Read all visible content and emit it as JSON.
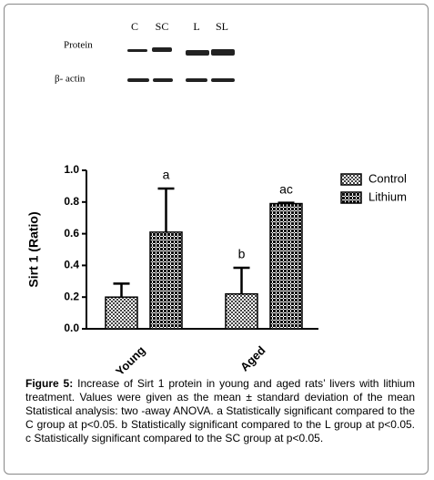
{
  "blot": {
    "lanes": [
      "C",
      "SC",
      "L",
      "SL"
    ],
    "rows": [
      "Protein",
      "β- actin"
    ]
  },
  "chart_data": {
    "type": "bar",
    "ylabel": "Sirt 1 (Ratio)",
    "categories": [
      "Young",
      "Aged"
    ],
    "series": [
      {
        "name": "Control",
        "color": "#444",
        "values": [
          0.2,
          0.22
        ],
        "errors": [
          0.085,
          0.165
        ],
        "annotations": [
          null,
          "b"
        ]
      },
      {
        "name": "Lithium",
        "color": "#111",
        "values": [
          0.61,
          0.79
        ],
        "errors": [
          0.275,
          0.005
        ],
        "annotations": [
          "a",
          "ac"
        ]
      }
    ],
    "ylim": [
      0,
      1
    ],
    "yticks": [
      {
        "value": 0,
        "label": "0.0"
      },
      0.2,
      0.4,
      0.6,
      0.8,
      {
        "value": 1,
        "label": "1.0"
      }
    ],
    "legend": "upper right"
  },
  "caption": {
    "label": "Figure 5:",
    "text": "Increase of  Sirt 1 protein  in  young and aged rats’ livers with lithium treatment. Values were given as the mean ± standard deviation of the mean Statistical analysis: two -away ANOVA. a Statistically significant compared to the C group at p<0.05. b Statistically significant compared to the L group at p<0.05. c Statistically significant compared to the SC group at p<0.05."
  }
}
